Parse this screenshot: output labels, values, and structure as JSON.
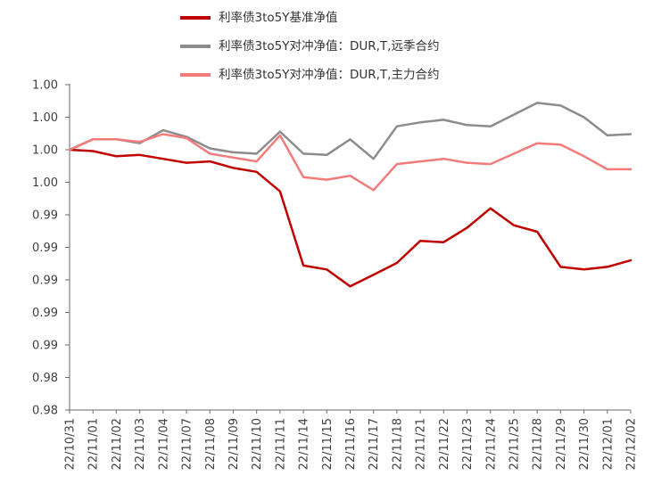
{
  "chart_data": {
    "type": "line",
    "title": "",
    "xlabel": "",
    "ylabel": "",
    "grid": false,
    "legend_position": "top-center",
    "axis_color": "#6b6b6b",
    "text_color": "#404040",
    "ylim": [
      0.98,
      1.005
    ],
    "x": [
      "22/10/31",
      "22/11/01",
      "22/11/02",
      "22/11/03",
      "22/11/04",
      "22/11/07",
      "22/11/08",
      "22/11/09",
      "22/11/10",
      "22/11/11",
      "22/11/14",
      "22/11/15",
      "22/11/16",
      "22/11/17",
      "22/11/18",
      "22/11/21",
      "22/11/22",
      "22/11/23",
      "22/11/24",
      "22/11/25",
      "22/11/28",
      "22/11/29",
      "22/11/30",
      "22/12/01",
      "22/12/02"
    ],
    "yticks": {
      "values": [
        1.005,
        1.0025,
        1.0,
        0.9975,
        0.995,
        0.9925,
        0.99,
        0.9875,
        0.985,
        0.9825,
        0.98
      ],
      "labels": [
        "1.00",
        "1.00",
        "1.00",
        "1.00",
        "0.99",
        "0.99",
        "0.99",
        "0.99",
        "0.99",
        "0.98",
        "0.98"
      ]
    },
    "series": [
      {
        "name": "利率债3to5Y基准净值",
        "color": "#c00000",
        "values": [
          1.0,
          0.9999,
          0.9995,
          0.9996,
          0.9993,
          0.999,
          0.9991,
          0.9986,
          0.9983,
          0.9968,
          0.9911,
          0.9908,
          0.9895,
          0.9904,
          0.9913,
          0.993,
          0.9929,
          0.994,
          0.9955,
          0.9942,
          0.9937,
          0.991,
          0.9908,
          0.991,
          0.9915
        ]
      },
      {
        "name": "利率债3to5Y对冲净值：DUR,T,远季合约",
        "color": "#8c8c8c",
        "values": [
          1.0,
          1.0008,
          1.0008,
          1.0005,
          1.0015,
          1.001,
          1.0001,
          0.9998,
          0.9997,
          1.0014,
          0.9997,
          0.9996,
          1.0008,
          0.9993,
          1.0018,
          1.0021,
          1.0023,
          1.0019,
          1.0018,
          1.0027,
          1.0036,
          1.0034,
          1.0025,
          1.0011,
          1.0012
        ]
      },
      {
        "name": "利率债3to5Y对冲净值：DUR,T,主力合约",
        "color": "#f47b7b",
        "values": [
          1.0,
          1.0008,
          1.0008,
          1.0006,
          1.0012,
          1.0009,
          0.9997,
          0.9994,
          0.9991,
          1.0011,
          0.9979,
          0.9977,
          0.998,
          0.9969,
          0.9989,
          0.9991,
          0.9993,
          0.999,
          0.9989,
          0.9997,
          1.0005,
          1.0004,
          0.9995,
          0.9985,
          0.9985
        ]
      }
    ]
  }
}
